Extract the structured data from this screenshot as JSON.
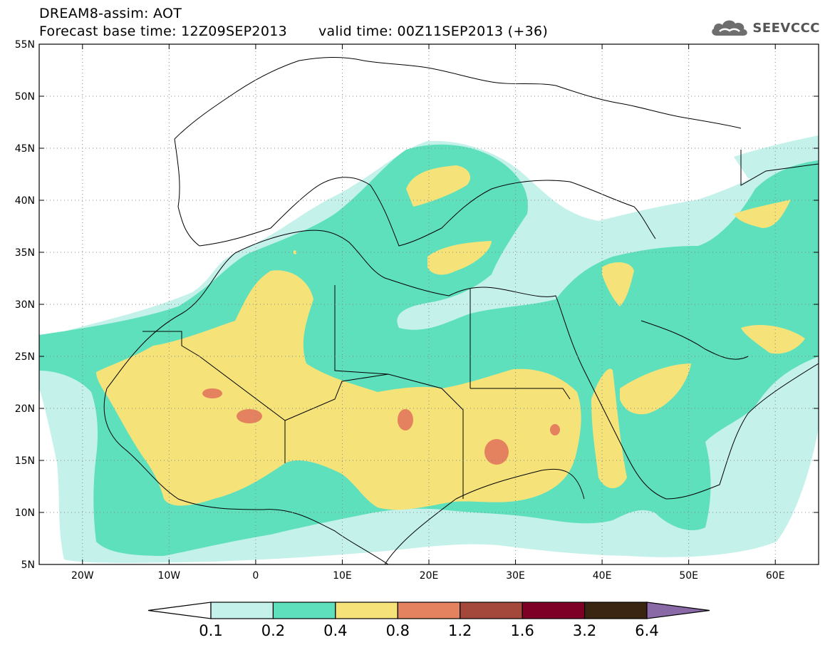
{
  "header": {
    "title": "DREAM8-assim: AOT",
    "base_time": "Forecast base time: 12Z09SEP2013",
    "valid_time": "valid time: 00Z11SEP2013 (+36)"
  },
  "logo": {
    "text": "SEEVCCC",
    "icon": "cloud-icon"
  },
  "map": {
    "lon_range": [
      -25,
      65
    ],
    "lat_range": [
      5,
      55
    ],
    "lat_ticks": [
      {
        "value": 55,
        "label": "55N"
      },
      {
        "value": 50,
        "label": "50N"
      },
      {
        "value": 45,
        "label": "45N"
      },
      {
        "value": 40,
        "label": "40N"
      },
      {
        "value": 35,
        "label": "35N"
      },
      {
        "value": 30,
        "label": "30N"
      },
      {
        "value": 25,
        "label": "25N"
      },
      {
        "value": 20,
        "label": "20N"
      },
      {
        "value": 15,
        "label": "15N"
      },
      {
        "value": 10,
        "label": "10N"
      },
      {
        "value": 5,
        "label": "5N"
      }
    ],
    "lon_ticks": [
      {
        "value": -20,
        "label": "20W"
      },
      {
        "value": -10,
        "label": "10W"
      },
      {
        "value": 0,
        "label": "0"
      },
      {
        "value": 10,
        "label": "10E"
      },
      {
        "value": 20,
        "label": "20E"
      },
      {
        "value": 30,
        "label": "30E"
      },
      {
        "value": 40,
        "label": "40E"
      },
      {
        "value": 50,
        "label": "50E"
      },
      {
        "value": 60,
        "label": "60E"
      }
    ],
    "grid": "dotted"
  },
  "colorbar": {
    "labels": [
      "0.1",
      "0.2",
      "0.4",
      "0.8",
      "1.2",
      "1.6",
      "3.2",
      "6.4"
    ],
    "colors": [
      "#ffffff",
      "#c4f1ea",
      "#5ee0bd",
      "#f5e37a",
      "#e4825f",
      "#a4483b",
      "#7e0024",
      "#3a2513",
      "#8a6aa6"
    ]
  },
  "aot_classes": {
    "0.1-0.2": "#c4f1ea",
    "0.2-0.4": "#5ee0bd",
    "0.4-0.8": "#f5e37a",
    "0.8-1.2": "#e4825f"
  }
}
